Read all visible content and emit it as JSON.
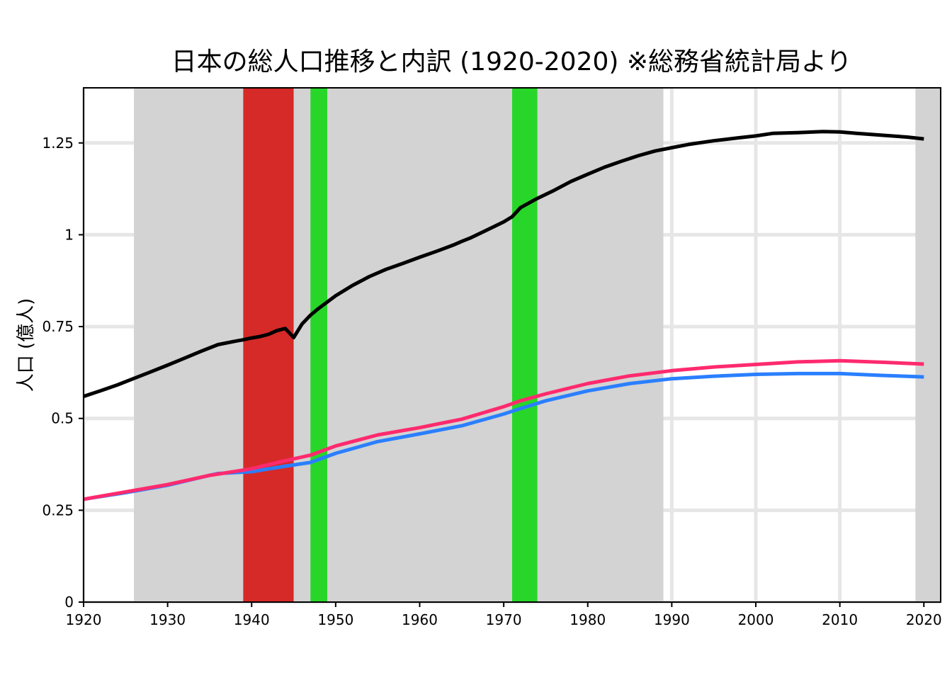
{
  "chart_data": {
    "type": "line",
    "title": "日本の総人口推移と内訳 (1920-2020) ※総務省統計局より",
    "xlabel": "",
    "ylabel": "人口 (億人)",
    "xlim": [
      1920,
      2022
    ],
    "ylim": [
      0,
      1.4
    ],
    "grid": true,
    "legend": "none",
    "x_ticks": [
      "1920",
      "1930",
      "1940",
      "1950",
      "1960",
      "1970",
      "1980",
      "1990",
      "2000",
      "2010",
      "2020"
    ],
    "x_tick_values": [
      1920,
      1930,
      1940,
      1950,
      1960,
      1970,
      1980,
      1990,
      2000,
      2010,
      2020
    ],
    "y_ticks": [
      "0",
      "0.25",
      "0.5",
      "0.75",
      "1",
      "1.25"
    ],
    "y_tick_values": [
      0,
      0.25,
      0.5,
      0.75,
      1,
      1.25
    ],
    "periods": [
      {
        "start": 1926,
        "end": 1989,
        "color": "#d3d3d3"
      },
      {
        "start": 1939,
        "end": 1945,
        "color": "#d62a28"
      },
      {
        "start": 1947,
        "end": 1949,
        "color": "#28d62a"
      },
      {
        "start": 1971,
        "end": 1974,
        "color": "#28d62a"
      },
      {
        "start": 2019,
        "end": 2022,
        "color": "#d3d3d3"
      }
    ],
    "series": [
      {
        "color": "#000000",
        "x": [
          1920,
          1922,
          1924,
          1926,
          1928,
          1930,
          1932,
          1934,
          1936,
          1938,
          1939,
          1940,
          1941,
          1942,
          1943,
          1944,
          1945,
          1946,
          1947,
          1948,
          1950,
          1952,
          1954,
          1956,
          1958,
          1960,
          1962,
          1964,
          1965,
          1966,
          1968,
          1970,
          1971,
          1972,
          1974,
          1976,
          1978,
          1980,
          1982,
          1984,
          1986,
          1988,
          1990,
          1992,
          1995,
          1998,
          2000,
          2002,
          2005,
          2008,
          2010,
          2012,
          2015,
          2018,
          2020
        ],
        "y": [
          0.56,
          0.575,
          0.591,
          0.609,
          0.627,
          0.645,
          0.664,
          0.683,
          0.701,
          0.71,
          0.714,
          0.719,
          0.723,
          0.729,
          0.739,
          0.745,
          0.72,
          0.757,
          0.781,
          0.8,
          0.834,
          0.862,
          0.886,
          0.906,
          0.922,
          0.939,
          0.955,
          0.972,
          0.982,
          0.991,
          1.013,
          1.035,
          1.049,
          1.074,
          1.099,
          1.121,
          1.145,
          1.165,
          1.184,
          1.2,
          1.215,
          1.228,
          1.237,
          1.246,
          1.256,
          1.264,
          1.269,
          1.276,
          1.278,
          1.281,
          1.28,
          1.276,
          1.271,
          1.266,
          1.261
        ]
      },
      {
        "color": "#ff2a6e",
        "x": [
          1920,
          1925,
          1930,
          1935,
          1940,
          1944,
          1947,
          1950,
          1955,
          1960,
          1965,
          1970,
          1972,
          1975,
          1980,
          1985,
          1990,
          1995,
          2000,
          2005,
          2010,
          2015,
          2020
        ],
        "y": [
          0.28,
          0.3,
          0.32,
          0.345,
          0.363,
          0.385,
          0.4,
          0.425,
          0.455,
          0.475,
          0.498,
          0.532,
          0.548,
          0.567,
          0.595,
          0.616,
          0.63,
          0.64,
          0.647,
          0.654,
          0.657,
          0.653,
          0.648
        ]
      },
      {
        "color": "#2a7fff",
        "x": [
          1920,
          1925,
          1930,
          1935,
          1936,
          1940,
          1944,
          1947,
          1950,
          1955,
          1960,
          1965,
          1970,
          1972,
          1975,
          1980,
          1985,
          1990,
          1995,
          2000,
          2005,
          2010,
          2015,
          2020
        ],
        "y": [
          0.28,
          0.298,
          0.318,
          0.345,
          0.35,
          0.355,
          0.37,
          0.38,
          0.405,
          0.437,
          0.458,
          0.48,
          0.512,
          0.527,
          0.548,
          0.575,
          0.595,
          0.608,
          0.615,
          0.62,
          0.622,
          0.622,
          0.617,
          0.613
        ]
      }
    ]
  }
}
